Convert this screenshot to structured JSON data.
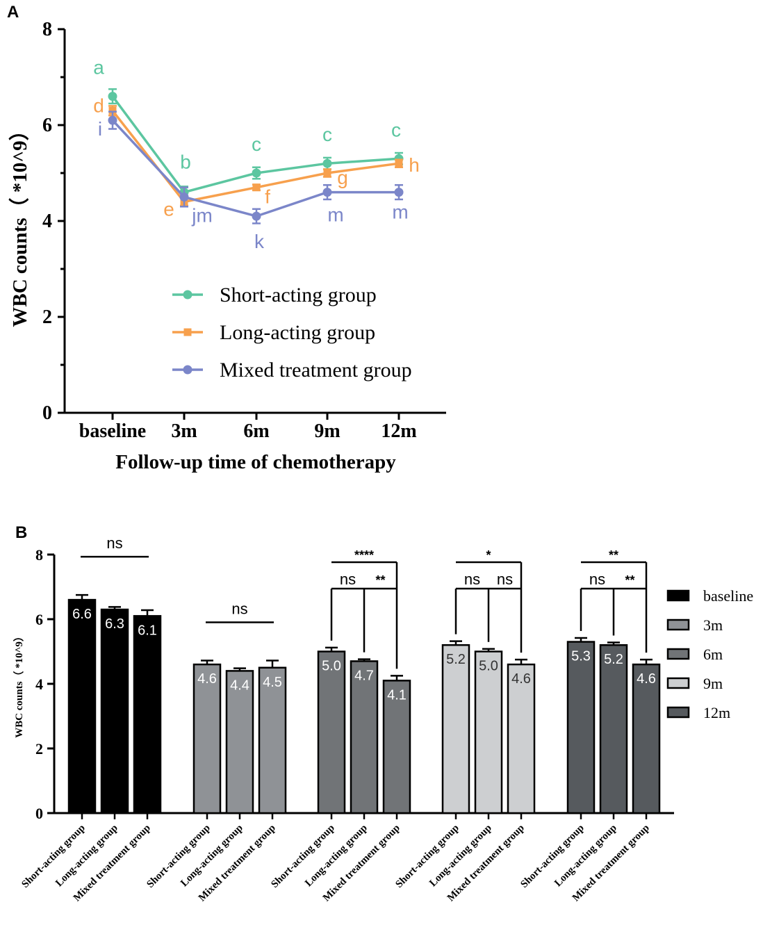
{
  "chart_data": [
    {
      "panel": "A",
      "type": "line",
      "xlabel": "Follow-up time of chemotherapy",
      "ylabel": "WBC counts（ *10^9）",
      "categories": [
        "baseline",
        "3m",
        "6m",
        "9m",
        "12m"
      ],
      "ylim": [
        0,
        8
      ],
      "yticks": [
        "0",
        "2",
        "4",
        "6",
        "8"
      ],
      "series": [
        {
          "name": "Short-acting group",
          "color": "#5cc6a0",
          "values": [
            6.6,
            4.6,
            5.0,
            5.2,
            5.3
          ],
          "errors": [
            0.15,
            0.12,
            0.12,
            0.12,
            0.12
          ],
          "letters": [
            "a",
            "b",
            "c",
            "c",
            "c"
          ]
        },
        {
          "name": "Long-acting group",
          "color": "#f7a04d",
          "values": [
            6.3,
            4.4,
            4.7,
            5.0,
            5.2
          ],
          "errors": [
            0.1,
            0.08,
            0.06,
            0.08,
            0.08
          ],
          "letters": [
            "d",
            "e",
            "f",
            "g",
            "h"
          ]
        },
        {
          "name": "Mixed treatment group",
          "color": "#7b86c9",
          "values": [
            6.1,
            4.5,
            4.1,
            4.6,
            4.6
          ],
          "errors": [
            0.18,
            0.2,
            0.15,
            0.15,
            0.15
          ],
          "letters": [
            "i",
            "jm",
            "k",
            "m",
            "m"
          ]
        }
      ]
    },
    {
      "panel": "B",
      "type": "bar",
      "ylabel": "WBC counts（ *10^9）",
      "ylim": [
        0,
        8
      ],
      "yticks": [
        "0",
        "2",
        "4",
        "6",
        "8"
      ],
      "bar_categories": [
        "Short-acting group",
        "Long-acting group",
        "Mixed treatment group"
      ],
      "groups": [
        {
          "name": "baseline",
          "color": "#000000",
          "values": [
            6.6,
            6.3,
            6.1
          ],
          "errors": [
            0.15,
            0.08,
            0.18
          ],
          "labels": [
            "6.6",
            "6.3",
            "6.1"
          ],
          "sig": {
            "type": "line",
            "text": "ns"
          }
        },
        {
          "name": "3m",
          "color": "#8f9296",
          "values": [
            4.6,
            4.4,
            4.5
          ],
          "errors": [
            0.12,
            0.08,
            0.22
          ],
          "labels": [
            "4.6",
            "4.4",
            "4.5"
          ],
          "sig": {
            "type": "line",
            "text": "ns"
          }
        },
        {
          "name": "6m",
          "color": "#717477",
          "values": [
            5.0,
            4.7,
            4.1
          ],
          "errors": [
            0.12,
            0.06,
            0.15
          ],
          "labels": [
            "5.0",
            "4.7",
            "4.1"
          ],
          "sig": {
            "type": "bracket",
            "top": "****",
            "left": "ns",
            "right": "**"
          }
        },
        {
          "name": "9m",
          "color": "#cdcfd1",
          "values": [
            5.2,
            5.0,
            4.6
          ],
          "errors": [
            0.12,
            0.08,
            0.15
          ],
          "labels": [
            "5.2",
            "5.0",
            "4.6"
          ],
          "sig": {
            "type": "bracket",
            "top": "*",
            "left": "ns",
            "right": "ns"
          }
        },
        {
          "name": "12m",
          "color": "#565a5e",
          "values": [
            5.3,
            5.2,
            4.6
          ],
          "errors": [
            0.12,
            0.08,
            0.15
          ],
          "labels": [
            "5.3",
            "5.2",
            "4.6"
          ],
          "sig": {
            "type": "bracket",
            "top": "**",
            "left": "ns",
            "right": "**"
          }
        }
      ]
    }
  ],
  "panels": {
    "a_label": "A",
    "b_label": "B"
  }
}
